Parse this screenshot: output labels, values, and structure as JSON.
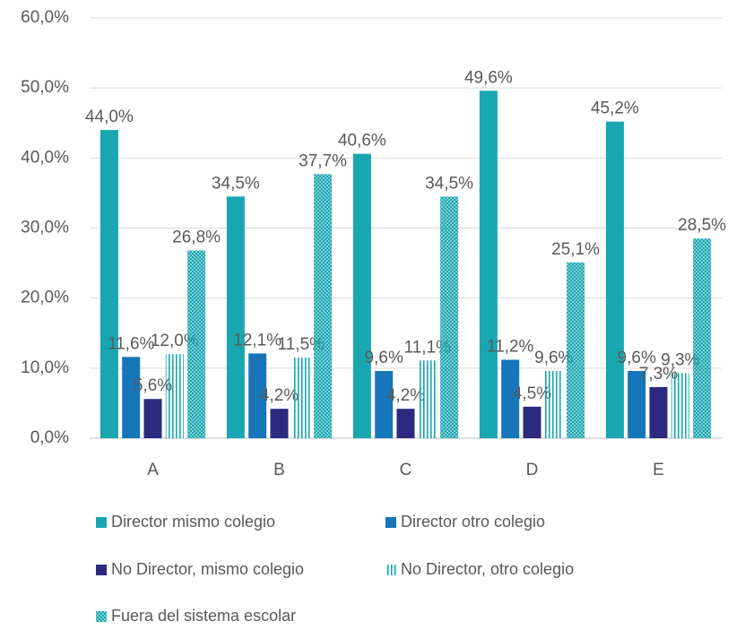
{
  "chart_data": {
    "type": "bar",
    "categories": [
      "A",
      "B",
      "C",
      "D",
      "E"
    ],
    "series": [
      {
        "name": "Director mismo colegio",
        "color": "#19a6b1",
        "pattern": "solid",
        "values": [
          44.0,
          34.5,
          40.6,
          49.6,
          45.2
        ],
        "value_labels": [
          "44,0%",
          "34,5%",
          "40,6%",
          "49,6%",
          "45,2%"
        ]
      },
      {
        "name": "Director otro colegio",
        "color": "#1676b9",
        "pattern": "solid",
        "values": [
          11.6,
          12.1,
          9.6,
          11.2,
          9.6
        ],
        "value_labels": [
          "11,6%",
          "12,1%",
          "9,6%",
          "11,2%",
          "9,6%"
        ]
      },
      {
        "name": "No Director, mismo colegio",
        "color": "#2b2a7e",
        "pattern": "solid",
        "values": [
          5.6,
          4.2,
          4.2,
          4.5,
          7.3
        ],
        "value_labels": [
          "5,6%",
          "4,2%",
          "4,2%",
          "4,5%",
          "7,3%"
        ]
      },
      {
        "name": "No Director, otro colegio",
        "color": "#19a6b1",
        "pattern": "vstripes",
        "values": [
          12.0,
          11.5,
          11.1,
          9.6,
          9.3
        ],
        "value_labels": [
          "12,0%",
          "11,5%",
          "11,1%",
          "9,6%",
          "9,3%"
        ]
      },
      {
        "name": "Fuera del sistema escolar",
        "color": "#19a6b1",
        "pattern": "checker",
        "values": [
          26.8,
          37.7,
          34.5,
          25.1,
          28.5
        ],
        "value_labels": [
          "26,8%",
          "37,7%",
          "34,5%",
          "25,1%",
          "28,5%"
        ]
      }
    ],
    "ylim": [
      0,
      60
    ],
    "yticks": [
      {
        "value": 0,
        "label": "0,0%"
      },
      {
        "value": 10,
        "label": "10,0%"
      },
      {
        "value": 20,
        "label": "20,0%"
      },
      {
        "value": 30,
        "label": "30,0%"
      },
      {
        "value": 40,
        "label": "40,0%"
      },
      {
        "value": 50,
        "label": "50,0%"
      },
      {
        "value": 60,
        "label": "60,0%"
      }
    ],
    "grid": true,
    "legend": "bottom"
  }
}
